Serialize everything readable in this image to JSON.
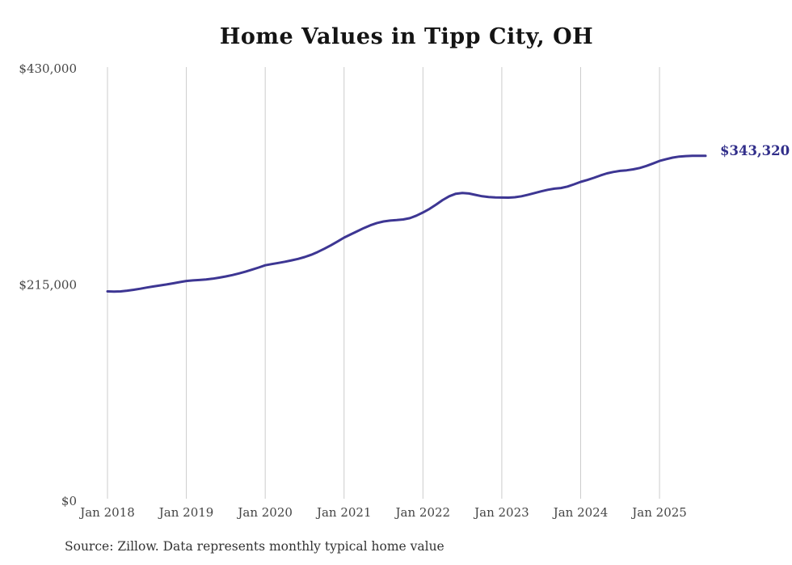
{
  "chart_data": {
    "type": "line",
    "title": "Home Values in Tipp City, OH",
    "series_name": "Monthly typical home value",
    "ylim": [
      0,
      430000
    ],
    "grid": "vertical-only",
    "legend": "none",
    "line_color": "#3d3693",
    "end_label_color": "#312e8a",
    "end_label": "$343,320",
    "gridline_color": "#cccccc",
    "y_ticks": [
      {
        "value": 0,
        "label": "$0"
      },
      {
        "value": 215000,
        "label": "$215,000"
      },
      {
        "value": 430000,
        "label": "$430,000"
      }
    ],
    "x_ticks": [
      {
        "month_index": 0,
        "label": "Jan 2018"
      },
      {
        "month_index": 12,
        "label": "Jan 2019"
      },
      {
        "month_index": 24,
        "label": "Jan 2020"
      },
      {
        "month_index": 36,
        "label": "Jan 2021"
      },
      {
        "month_index": 48,
        "label": "Jan 2022"
      },
      {
        "month_index": 60,
        "label": "Jan 2023"
      },
      {
        "month_index": 72,
        "label": "Jan 2024"
      },
      {
        "month_index": 84,
        "label": "Jan 2025"
      }
    ],
    "months": [
      "2018-01",
      "2018-02",
      "2018-03",
      "2018-04",
      "2018-05",
      "2018-06",
      "2018-07",
      "2018-08",
      "2018-09",
      "2018-10",
      "2018-11",
      "2018-12",
      "2019-01",
      "2019-02",
      "2019-03",
      "2019-04",
      "2019-05",
      "2019-06",
      "2019-07",
      "2019-08",
      "2019-09",
      "2019-10",
      "2019-11",
      "2019-12",
      "2020-01",
      "2020-02",
      "2020-03",
      "2020-04",
      "2020-05",
      "2020-06",
      "2020-07",
      "2020-08",
      "2020-09",
      "2020-10",
      "2020-11",
      "2020-12",
      "2021-01",
      "2021-02",
      "2021-03",
      "2021-04",
      "2021-05",
      "2021-06",
      "2021-07",
      "2021-08",
      "2021-09",
      "2021-10",
      "2021-11",
      "2021-12",
      "2022-01",
      "2022-02",
      "2022-03",
      "2022-04",
      "2022-05",
      "2022-06",
      "2022-07",
      "2022-08",
      "2022-09",
      "2022-10",
      "2022-11",
      "2022-12",
      "2023-01",
      "2023-02",
      "2023-03",
      "2023-04",
      "2023-05",
      "2023-06",
      "2023-07",
      "2023-08",
      "2023-09",
      "2023-10",
      "2023-11",
      "2023-12",
      "2024-01",
      "2024-02",
      "2024-03",
      "2024-04",
      "2024-05",
      "2024-06",
      "2024-07",
      "2024-08",
      "2024-09",
      "2024-10",
      "2024-11",
      "2024-12",
      "2025-01",
      "2025-02",
      "2025-03",
      "2025-04",
      "2025-05",
      "2025-06",
      "2025-07",
      "2025-08"
    ],
    "values": [
      208600,
      208400,
      208600,
      209300,
      210200,
      211200,
      212400,
      213500,
      214500,
      215500,
      216600,
      217800,
      218900,
      219500,
      219900,
      220400,
      221200,
      222200,
      223400,
      224800,
      226400,
      228200,
      230200,
      232300,
      234500,
      235700,
      236900,
      238100,
      239400,
      240900,
      242700,
      245000,
      247800,
      251000,
      254500,
      258200,
      262000,
      265200,
      268400,
      271500,
      274300,
      276600,
      278100,
      279000,
      279500,
      280100,
      281400,
      283900,
      287000,
      290600,
      294900,
      299400,
      303200,
      305700,
      306500,
      305900,
      304500,
      303200,
      302400,
      302000,
      301900,
      301800,
      302200,
      303200,
      304700,
      306400,
      308100,
      309600,
      310700,
      311400,
      312800,
      315100,
      317500,
      319300,
      321500,
      323800,
      325900,
      327400,
      328400,
      329000,
      329900,
      331300,
      333300,
      335700,
      338300,
      340100,
      341600,
      342600,
      343100,
      343400,
      343400,
      343320
    ]
  },
  "footer": {
    "source": "Source: Zillow. Data represents monthly typical home value"
  }
}
